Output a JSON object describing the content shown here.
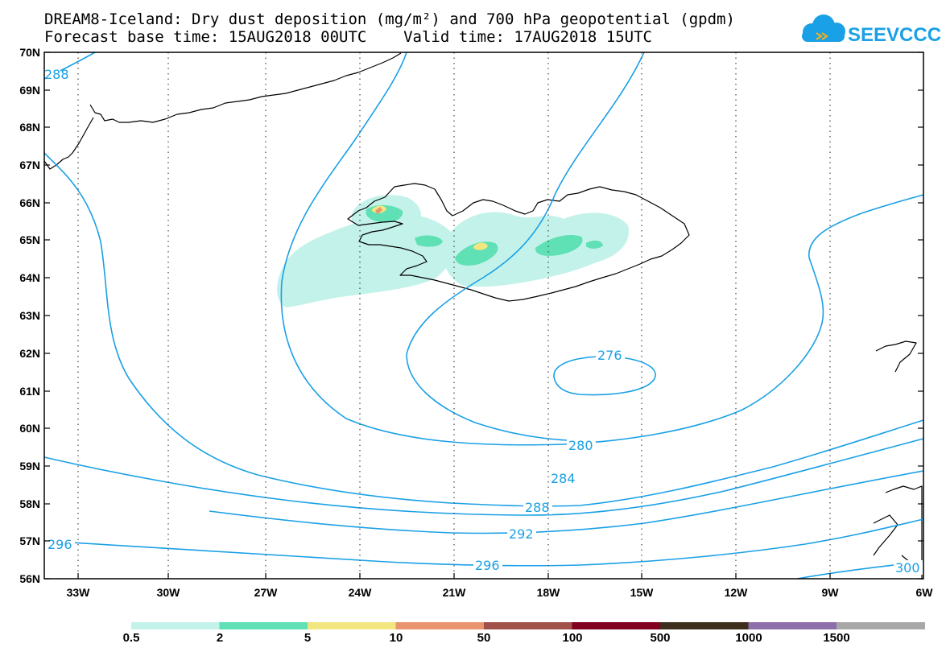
{
  "title": {
    "line1": "DREAM8-Iceland: Dry dust deposition (mg/m²) and 700 hPa geopotential (gpdm)",
    "line2": "Forecast base time: 15AUG2018 00UTC    Valid time: 17AUG2018 15UTC"
  },
  "logo": {
    "text": "SEEVCCC"
  },
  "axes": {
    "lat_labels": [
      "70N",
      "69N",
      "68N",
      "67N",
      "66N",
      "65N",
      "64N",
      "63N",
      "62N",
      "61N",
      "60N",
      "59N",
      "58N",
      "57N",
      "56N"
    ],
    "lon_labels": [
      "33W",
      "30W",
      "27W",
      "24W",
      "21W",
      "18W",
      "15W",
      "12W",
      "9W",
      "6W"
    ]
  },
  "contour_labels": [
    "288",
    "276",
    "280",
    "284",
    "288",
    "292",
    "296",
    "296",
    "300"
  ],
  "legend": {
    "labels": [
      "0.5",
      "2",
      "5",
      "10",
      "50",
      "100",
      "500",
      "1000",
      "1500"
    ],
    "colors": [
      "#c3f2ea",
      "#5fe0b5",
      "#f2e680",
      "#e9956e",
      "#a0524a",
      "#820020",
      "#3e2e1e",
      "#8e6eaa",
      "#a8a8a8",
      "#a8a8a8"
    ]
  },
  "colors": {
    "contour": "#1aa0e6",
    "dust_low": "#c3f2ea",
    "dust_mid": "#5fe0b5",
    "dust_high": "#f2e680",
    "dust_higher": "#e9956e"
  }
}
